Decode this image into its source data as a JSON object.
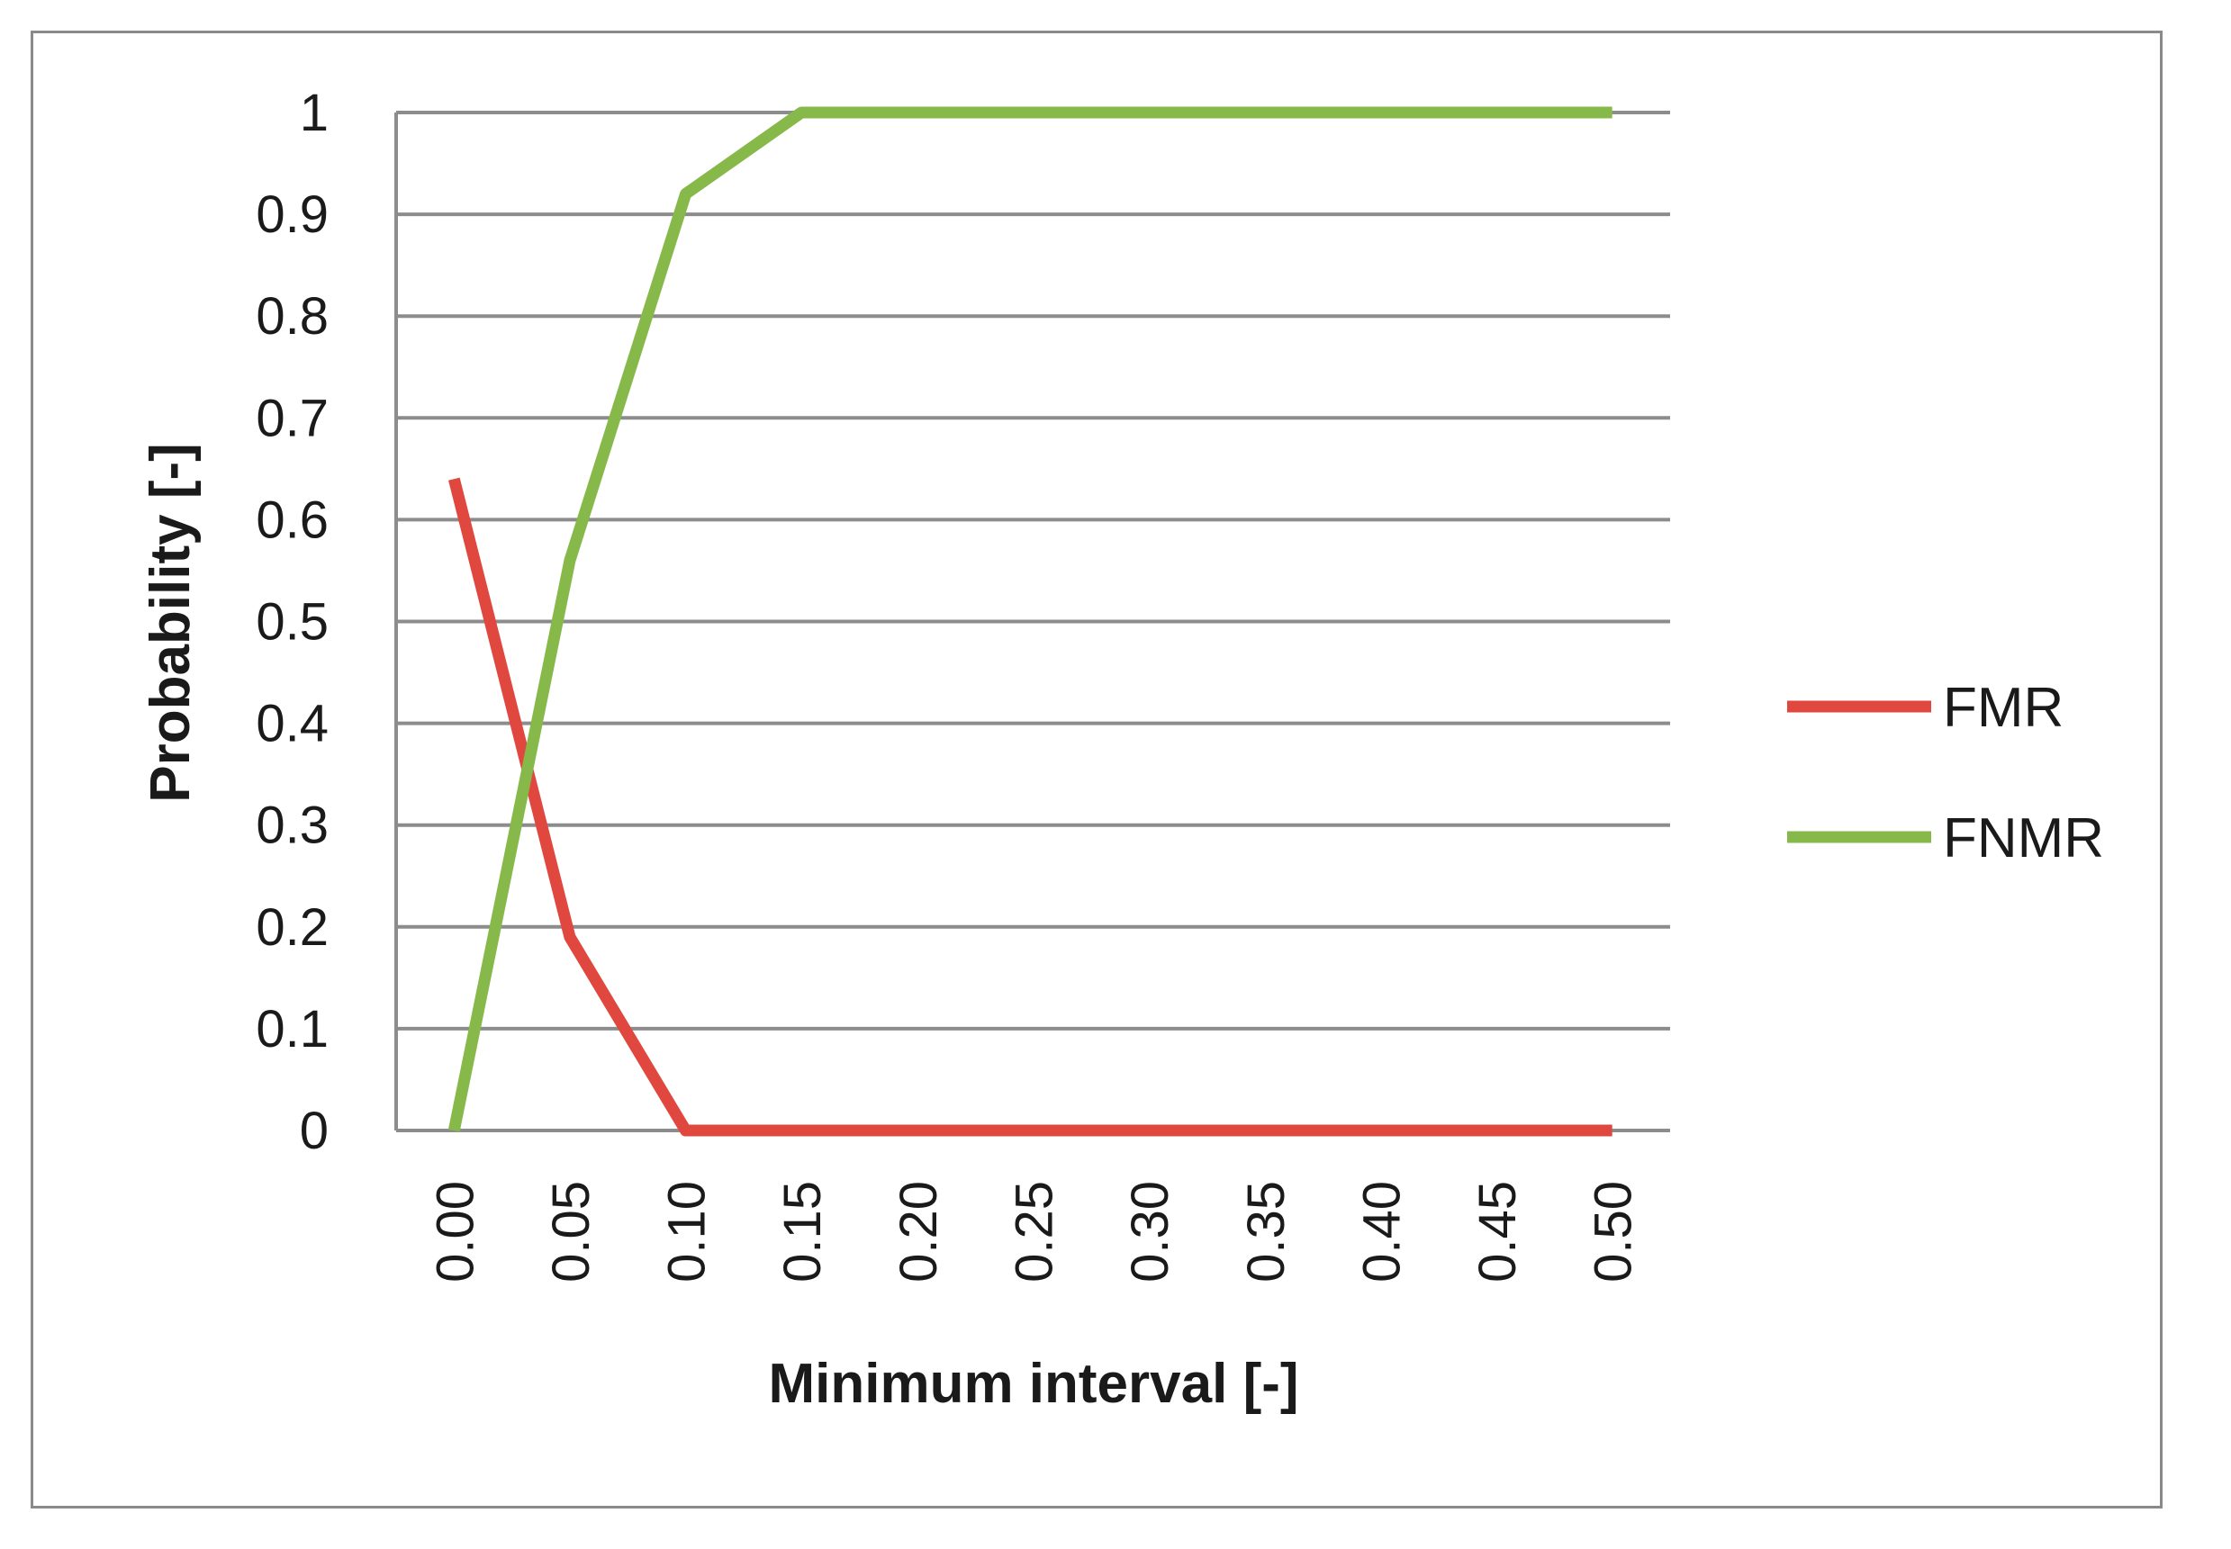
{
  "chart_data": {
    "type": "line",
    "title": "",
    "xlabel": "Minimum interval [-]",
    "ylabel": "Probability [-]",
    "categories": [
      "0.00",
      "0.05",
      "0.10",
      "0.15",
      "0.20",
      "0.25",
      "0.30",
      "0.35",
      "0.40",
      "0.45",
      "0.50"
    ],
    "y_ticks": [
      "0",
      "0.1",
      "0.2",
      "0.3",
      "0.4",
      "0.5",
      "0.6",
      "0.7",
      "0.8",
      "0.9",
      "1"
    ],
    "ylim": [
      0,
      1
    ],
    "grid": "horizontal",
    "legend": "right",
    "series": [
      {
        "name": "FMR",
        "color": "#e0483f",
        "values": [
          0.64,
          0.19,
          0,
          0,
          0,
          0,
          0,
          0,
          0,
          0,
          0
        ]
      },
      {
        "name": "FNMR",
        "color": "#86b94a",
        "values": [
          0,
          0.56,
          0.92,
          1,
          1,
          1,
          1,
          1,
          1,
          1,
          1
        ]
      }
    ]
  }
}
